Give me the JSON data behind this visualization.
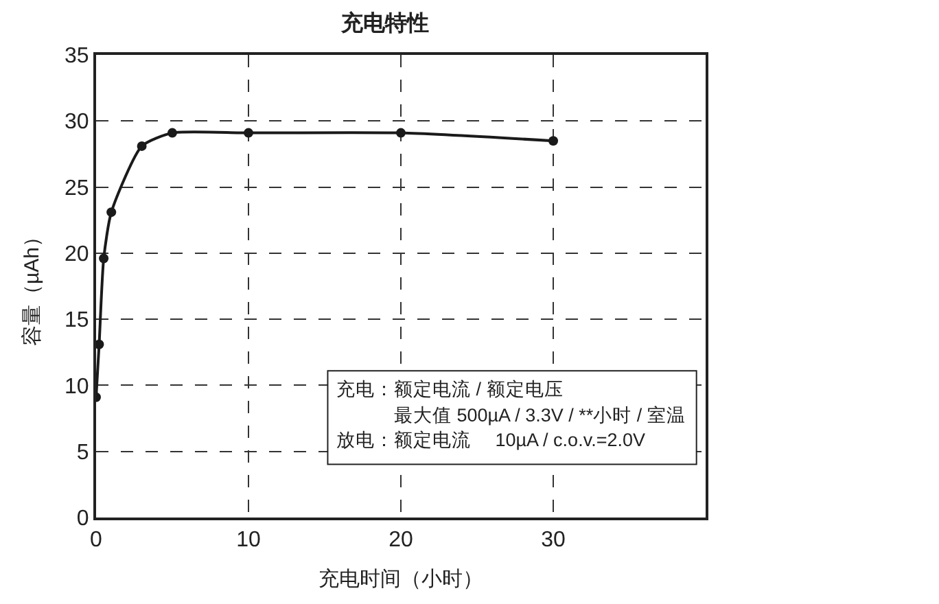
{
  "chart_data": {
    "type": "line",
    "title": "充电特性",
    "xlabel": "充电时间（小时）",
    "ylabel": "容量（µAh）",
    "x": [
      0,
      0.2,
      0.5,
      1,
      3,
      5,
      10,
      20,
      30
    ],
    "series": [
      {
        "color": "#1a1a1a",
        "values": [
          9.1,
          13.1,
          19.6,
          23.1,
          28.1,
          29.1,
          29.1,
          29.1,
          28.5
        ]
      }
    ],
    "xlim": [
      0,
      40
    ],
    "xticks": [
      0,
      10,
      20,
      30
    ],
    "ylim": [
      0,
      35
    ],
    "yticks": [
      0,
      5,
      10,
      15,
      20,
      25,
      30,
      35
    ],
    "grid": true,
    "marker": "circle",
    "line_style": "solid",
    "annotations": [
      "充电：额定电流 / 额定电压",
      "最大值 500µA / 3.3V / **小时 / 室温",
      "放电：额定电流　 10µA / c.o.v.=2.0V"
    ]
  }
}
